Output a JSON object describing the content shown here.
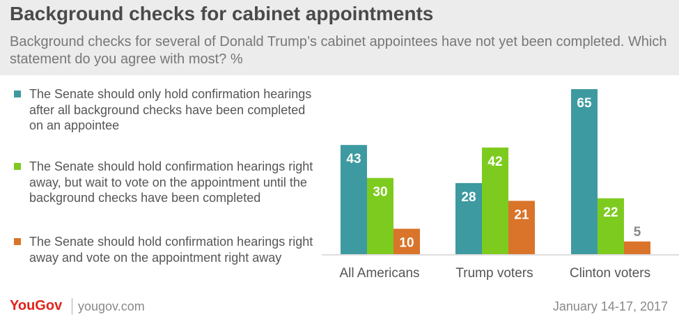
{
  "header": {
    "title": "Background checks for cabinet appointments",
    "subtitle": "Background checks for several of Donald Trump’s cabinet appointees have not yet been completed. Which statement do you agree with most? %"
  },
  "footer": {
    "logo": "YouGov",
    "site": "yougov.com",
    "date": "January 14-17, 2017"
  },
  "colors": {
    "series_1": "#3d9aa0",
    "series_2": "#7ecb1f",
    "series_3": "#d9742a",
    "small_label": "#888888"
  },
  "chart_data": {
    "type": "bar",
    "categories": [
      "All Americans",
      "Trump voters",
      "Clinton voters"
    ],
    "series": [
      {
        "name": "The Senate should only hold confirmation hearings after all background checks have been completed on an appointee",
        "values": [
          43,
          28,
          65
        ]
      },
      {
        "name": "The Senate should hold confirmation hearings right away, but wait to vote on the appointment until the background checks have been completed",
        "values": [
          30,
          42,
          22
        ]
      },
      {
        "name": "The Senate should hold confirmation hearings right away and vote on the appointment right away",
        "values": [
          10,
          21,
          5
        ]
      }
    ],
    "ylim": [
      0,
      65
    ],
    "grid": false,
    "legend_position": "left"
  }
}
